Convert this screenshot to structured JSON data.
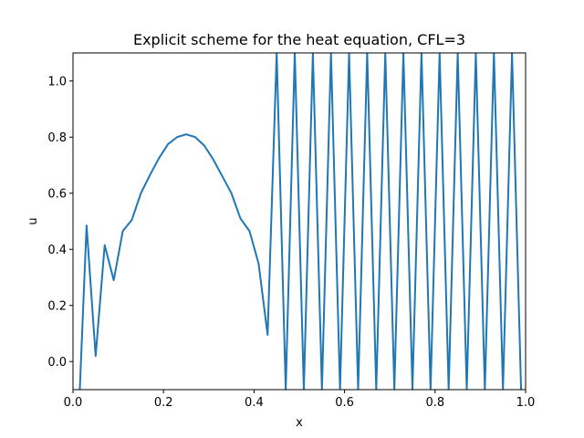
{
  "chart_data": {
    "type": "line",
    "title": "Explicit scheme for the heat equation, CFL=3",
    "xlabel": "x",
    "ylabel": "u",
    "xlim": [
      0.0,
      1.0
    ],
    "ylim": [
      -0.1,
      1.1
    ],
    "xticks": [
      0.0,
      0.2,
      0.4,
      0.6,
      0.8,
      1.0
    ],
    "xtick_labels": [
      "0.0",
      "0.2",
      "0.4",
      "0.6",
      "0.8",
      "1.0"
    ],
    "yticks": [
      0.0,
      0.2,
      0.4,
      0.6,
      0.8,
      1.0
    ],
    "ytick_labels": [
      "0.0",
      "0.2",
      "0.4",
      "0.6",
      "0.8",
      "1.0"
    ],
    "grid": false,
    "series": [
      {
        "color": "#1f77b4",
        "x": [
          0.015,
          0.03,
          0.05,
          0.07,
          0.09,
          0.11,
          0.13,
          0.15,
          0.17,
          0.19,
          0.21,
          0.23,
          0.25,
          0.27,
          0.29,
          0.31,
          0.33,
          0.35,
          0.37,
          0.39,
          0.41,
          0.43,
          0.45,
          0.47,
          0.49,
          0.51,
          0.53,
          0.55,
          0.57,
          0.59,
          0.61,
          0.63,
          0.65,
          0.67,
          0.69,
          0.71,
          0.73,
          0.75,
          0.77,
          0.79,
          0.81,
          0.83,
          0.85,
          0.87,
          0.89,
          0.91,
          0.93,
          0.95,
          0.97,
          0.99
        ],
        "y": [
          -0.1,
          0.485,
          0.02,
          0.415,
          0.29,
          0.465,
          0.505,
          0.6,
          0.665,
          0.725,
          0.775,
          0.8,
          0.81,
          0.8,
          0.77,
          0.72,
          0.66,
          0.6,
          0.51,
          0.465,
          0.35,
          0.095,
          1.1,
          -0.1,
          1.1,
          -0.1,
          1.1,
          -0.1,
          1.1,
          -0.1,
          1.1,
          -0.1,
          1.1,
          -0.1,
          1.1,
          -0.1,
          1.1,
          -0.1,
          1.1,
          -0.1,
          1.1,
          -0.1,
          1.1,
          -0.1,
          1.1,
          -0.1,
          1.1,
          -0.1,
          1.1,
          -0.1
        ]
      }
    ]
  }
}
